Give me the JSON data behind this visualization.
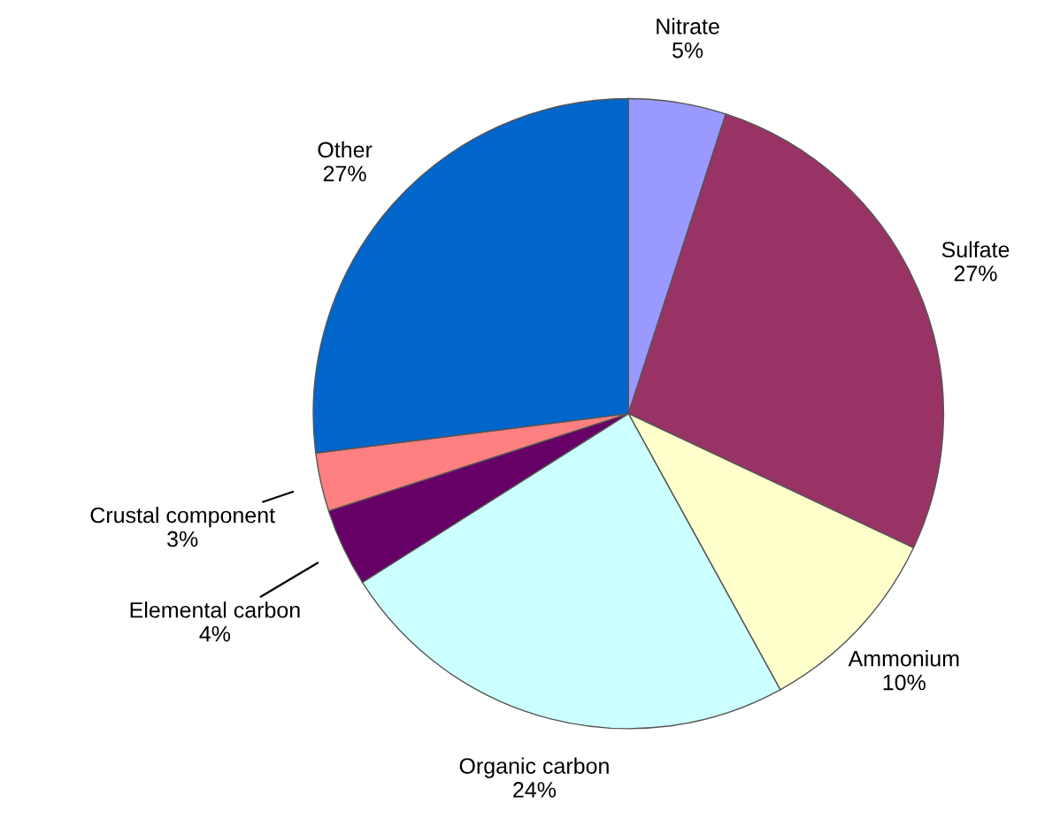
{
  "chart_data": {
    "type": "pie",
    "categories": [
      "Nitrate",
      "Sulfate",
      "Ammonium",
      "Organic carbon",
      "Elemental carbon",
      "Crustal component",
      "Other"
    ],
    "values": [
      5,
      27,
      10,
      24,
      4,
      3,
      27
    ],
    "value_labels": [
      "5%",
      "27%",
      "10%",
      "24%",
      "4%",
      "3%",
      "27%"
    ],
    "colors": [
      "#9999ff",
      "#993366",
      "#ffffcc",
      "#ccffff",
      "#660066",
      "#ff8080",
      "#0066cc"
    ],
    "legend": false
  }
}
